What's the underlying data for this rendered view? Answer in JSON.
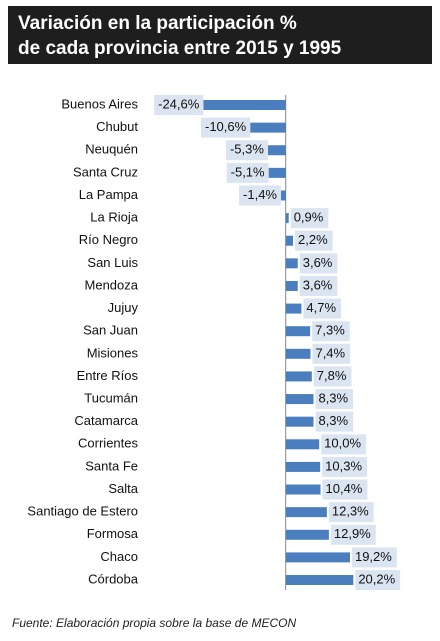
{
  "chart_data": {
    "type": "hbar",
    "title": [
      "Variación en la participación %",
      "de cada provincia entre 2015 y 1995"
    ],
    "source": "Fuente: Elaboración propia sobre la base de MECON",
    "categories": [
      "Buenos Aires",
      "Chubut",
      "Neuquén",
      "Santa Cruz",
      "La Pampa",
      "La Rioja",
      "Río Negro",
      "San Luis",
      "Mendoza",
      "Jujuy",
      "San Juan",
      "Misiones",
      "Entre Ríos",
      "Tucumán",
      "Catamarca",
      "Corrientes",
      "Santa Fe",
      "Salta",
      "Santiago de Estero",
      "Formosa",
      "Chaco",
      "Córdoba"
    ],
    "values": [
      -24.6,
      -10.6,
      -5.3,
      -5.1,
      -1.4,
      0.9,
      2.2,
      3.6,
      3.6,
      4.7,
      7.3,
      7.4,
      7.8,
      8.3,
      8.3,
      10.0,
      10.3,
      10.4,
      12.3,
      12.9,
      19.2,
      20.2
    ],
    "value_labels": [
      "-24,6%",
      "-10,6%",
      "-5,3%",
      "-5,1%",
      "-1,4%",
      "0,9%",
      "2,2%",
      "3,6%",
      "3,6%",
      "4,7%",
      "7,3%",
      "7,4%",
      "7,8%",
      "8,3%",
      "8,3%",
      "10,0%",
      "10,3%",
      "10,4%",
      "12,3%",
      "12,9%",
      "19,2%",
      "20,2%"
    ],
    "color": "#4a7ebf",
    "xlim": [
      -25,
      21
    ]
  }
}
